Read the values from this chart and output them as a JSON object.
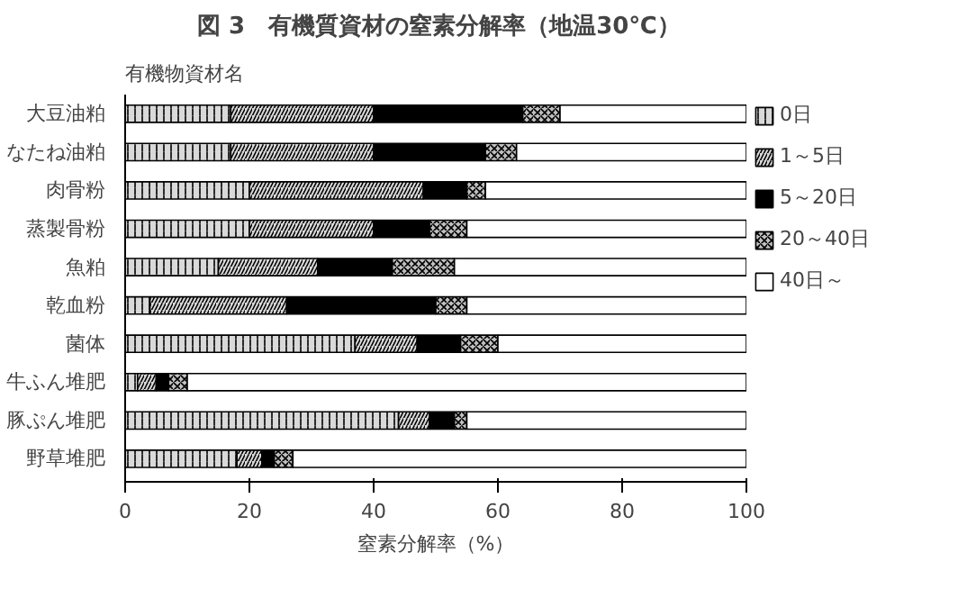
{
  "chart_data": {
    "type": "bar",
    "orientation": "horizontal",
    "stacked": true,
    "title": "図 3　有機質資材の窒素分解率（地温30℃）",
    "ylabel": "有機物資材名",
    "xlabel": "窒素分解率（%）",
    "categories": [
      "大豆油粕",
      "なたね油粕",
      "肉骨粉",
      "蒸製骨粉",
      "魚粕",
      "乾血粉",
      "菌体",
      "牛ふん堆肥",
      "豚ぷん堆肥",
      "野草堆肥"
    ],
    "series": [
      {
        "name": "0日",
        "color": "#d9d9d9",
        "values": [
          17,
          17,
          20,
          20,
          15,
          4,
          37,
          2,
          44,
          18
        ]
      },
      {
        "name": "1～5日",
        "color": "#d9d9d9",
        "values": [
          23,
          23,
          28,
          20,
          16,
          22,
          10,
          3,
          5,
          4
        ]
      },
      {
        "name": "5～20日",
        "color": "#000000",
        "values": [
          24,
          18,
          7,
          9,
          12,
          24,
          7,
          2,
          4,
          2
        ]
      },
      {
        "name": "20～40日",
        "color": "#bfbfbf",
        "values": [
          6,
          5,
          3,
          6,
          10,
          5,
          6,
          3,
          2,
          3
        ]
      },
      {
        "name": "40日～",
        "color": "#ffffff",
        "values": [
          30,
          37,
          42,
          45,
          47,
          45,
          40,
          90,
          45,
          73
        ]
      }
    ],
    "xlim": [
      0,
      100
    ],
    "xticks": [
      0,
      20,
      40,
      60,
      80,
      100
    ],
    "grid": false,
    "legend": "right"
  }
}
